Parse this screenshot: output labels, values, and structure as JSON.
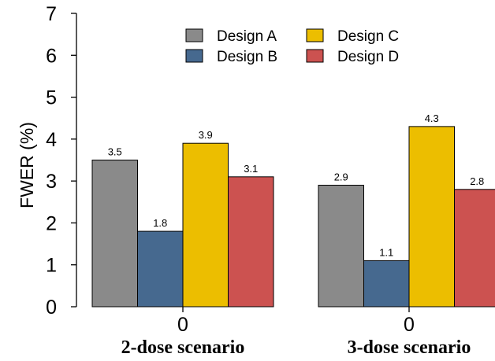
{
  "chart_data": {
    "type": "bar",
    "ylabel": "FWER (%)",
    "xlabel": "",
    "ylim": [
      0,
      7
    ],
    "yticks": [
      "0",
      "1",
      "2",
      "3",
      "4",
      "5",
      "6",
      "7"
    ],
    "categories": [
      "2-dose scenario",
      "3-dose scenario"
    ],
    "category_tick_labels": [
      "0",
      "0"
    ],
    "legend_position": "top",
    "grid": false,
    "series": [
      {
        "name": "Design A",
        "color": "#8a8a8a",
        "values": [
          3.5,
          2.9
        ],
        "labels": [
          "3.5",
          "2.9"
        ]
      },
      {
        "name": "Design B",
        "color": "#46698f",
        "values": [
          1.8,
          1.1
        ],
        "labels": [
          "1.8",
          "1.1"
        ]
      },
      {
        "name": "Design C",
        "color": "#ecbe00",
        "values": [
          3.9,
          4.3
        ],
        "labels": [
          "3.9",
          "4.3"
        ]
      },
      {
        "name": "Design D",
        "color": "#cc5250",
        "values": [
          3.1,
          2.8
        ],
        "labels": [
          "3.1",
          "2.8"
        ]
      }
    ]
  }
}
